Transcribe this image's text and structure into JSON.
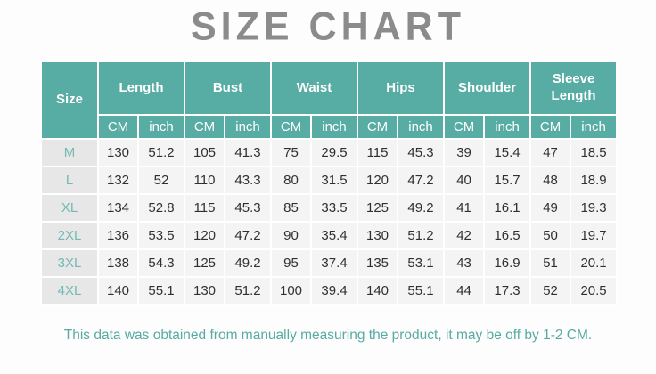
{
  "chart_data": {
    "type": "table",
    "title": "SIZE CHART",
    "size_header": "Size",
    "groups": [
      {
        "label": "Length",
        "units": [
          "CM",
          "inch"
        ]
      },
      {
        "label": "Bust",
        "units": [
          "CM",
          "inch"
        ]
      },
      {
        "label": "Waist",
        "units": [
          "CM",
          "inch"
        ]
      },
      {
        "label": "Hips",
        "units": [
          "CM",
          "inch"
        ]
      },
      {
        "label": "Shoulder",
        "units": [
          "CM",
          "inch"
        ]
      },
      {
        "label": "Sleeve Length",
        "units": [
          "CM",
          "inch"
        ]
      }
    ],
    "rows": [
      {
        "size": "M",
        "values": [
          "130",
          "51.2",
          "105",
          "41.3",
          "75",
          "29.5",
          "115",
          "45.3",
          "39",
          "15.4",
          "47",
          "18.5"
        ]
      },
      {
        "size": "L",
        "values": [
          "132",
          "52",
          "110",
          "43.3",
          "80",
          "31.5",
          "120",
          "47.2",
          "40",
          "15.7",
          "48",
          "18.9"
        ]
      },
      {
        "size": "XL",
        "values": [
          "134",
          "52.8",
          "115",
          "45.3",
          "85",
          "33.5",
          "125",
          "49.2",
          "41",
          "16.1",
          "49",
          "19.3"
        ]
      },
      {
        "size": "2XL",
        "values": [
          "136",
          "53.5",
          "120",
          "47.2",
          "90",
          "35.4",
          "130",
          "51.2",
          "42",
          "16.5",
          "50",
          "19.7"
        ]
      },
      {
        "size": "3XL",
        "values": [
          "138",
          "54.3",
          "125",
          "49.2",
          "95",
          "37.4",
          "135",
          "53.1",
          "43",
          "16.9",
          "51",
          "20.1"
        ]
      },
      {
        "size": "4XL",
        "values": [
          "140",
          "55.1",
          "130",
          "51.2",
          "100",
          "39.4",
          "140",
          "55.1",
          "44",
          "17.3",
          "52",
          "20.5"
        ]
      }
    ],
    "note": "This data was obtained from manually measuring the product, it may be off by 1-2 CM.",
    "layout": {
      "header_bg": "#57aca4",
      "header_text": "#ffffff",
      "size_column_bg": "#e7e7e7",
      "size_label_color": "#72bab2",
      "value_cell_bg": "#f4f4f4",
      "value_text_color": "#303030",
      "title_color": "#8b8b8b",
      "note_color": "#57aba3",
      "border_color": "#ffffff"
    }
  }
}
